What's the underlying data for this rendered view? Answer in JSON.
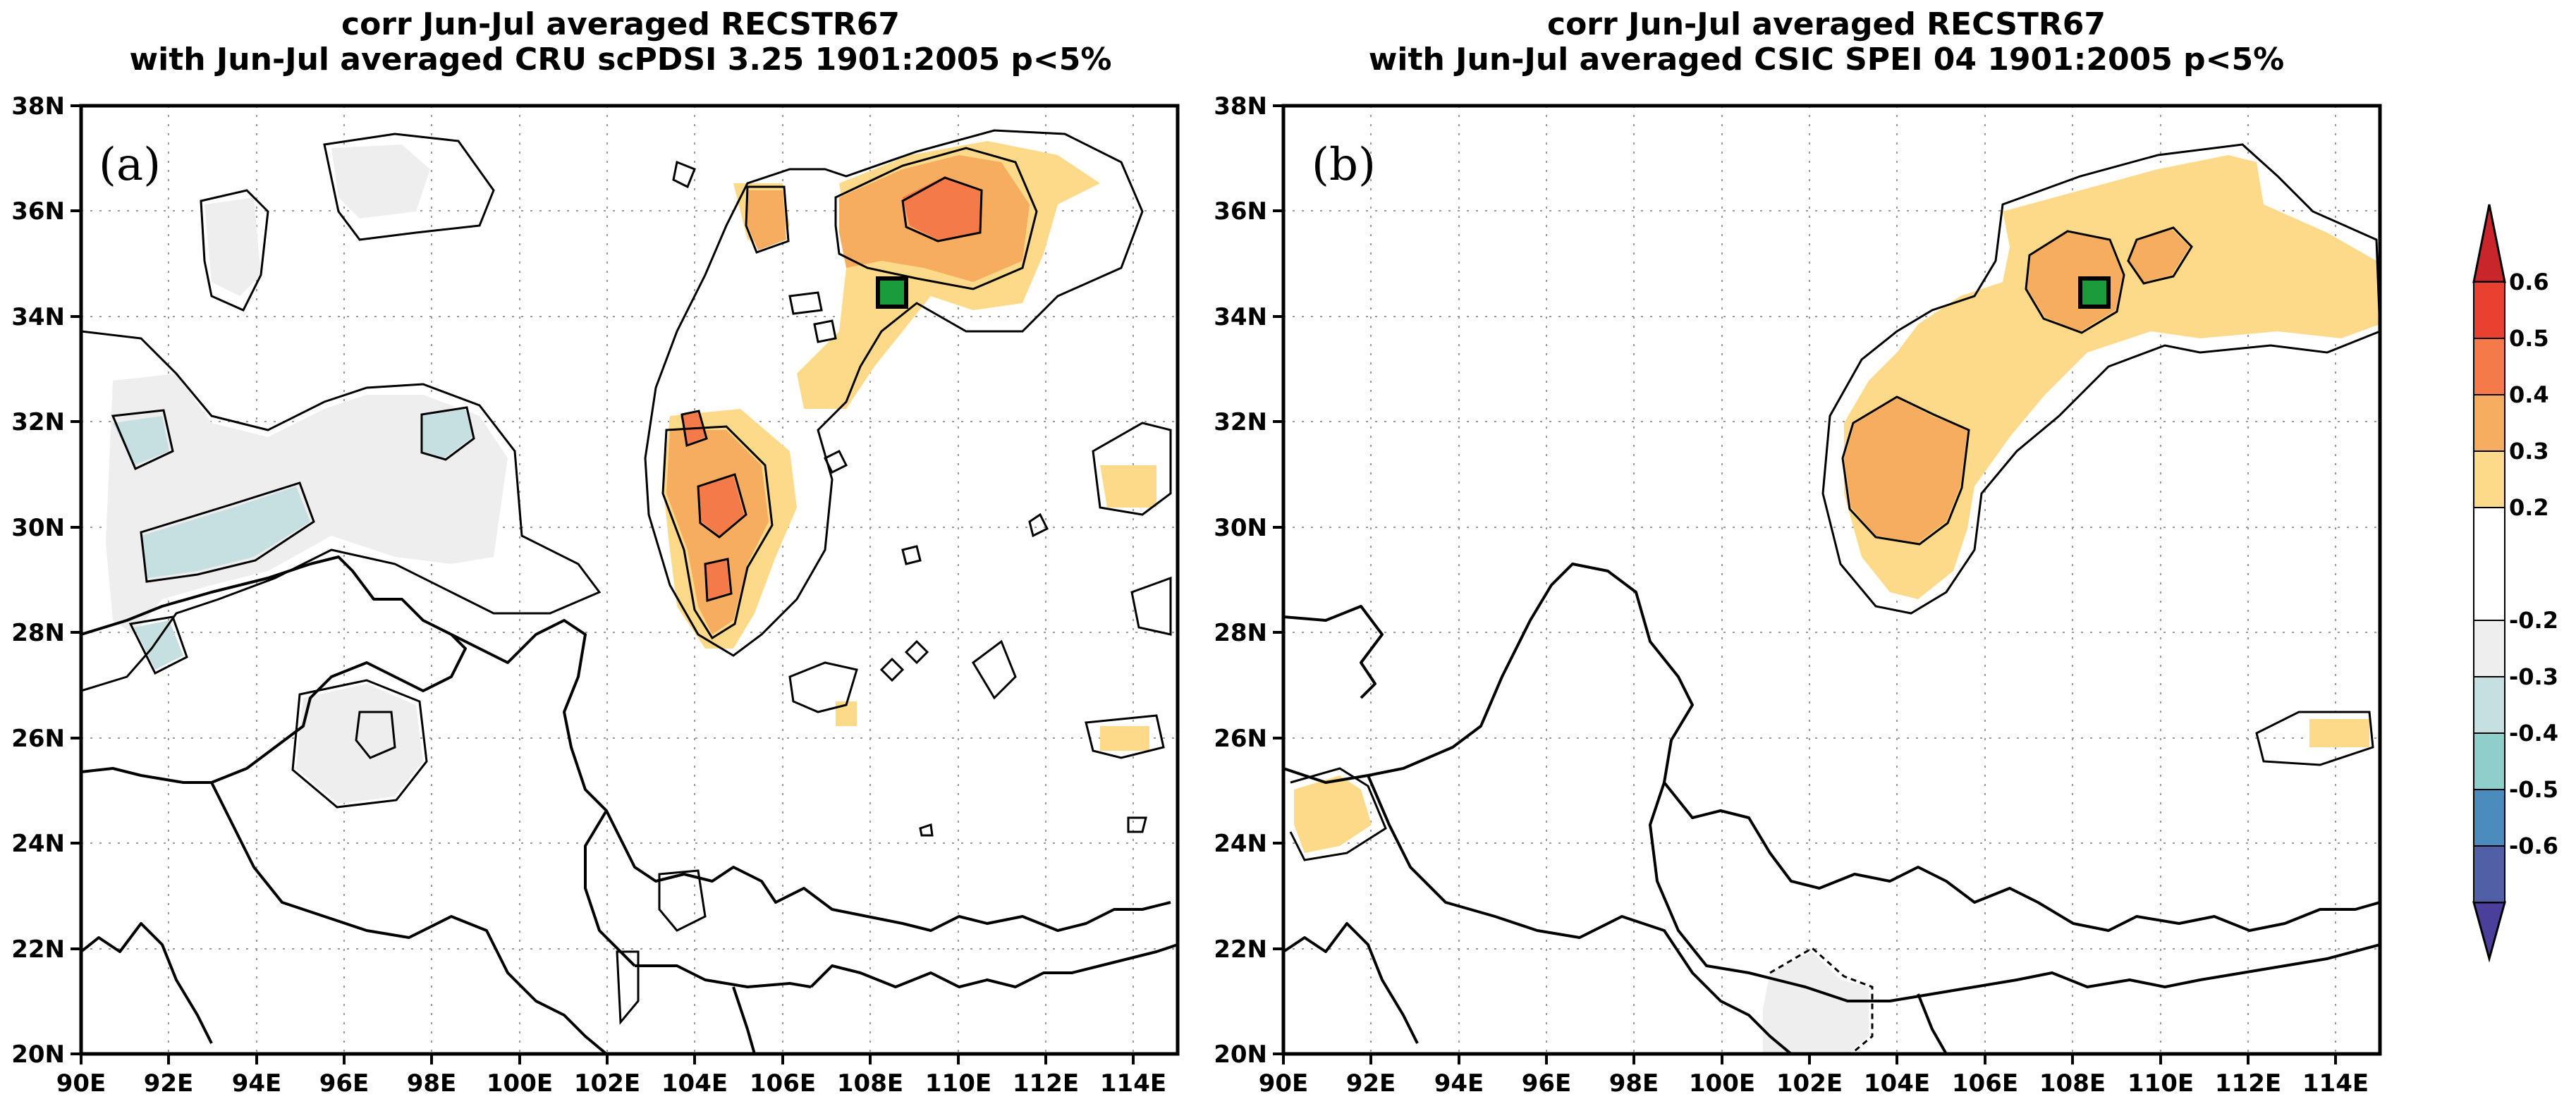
{
  "panels": [
    {
      "id": "a",
      "label": "(a)",
      "title_line1": "corr Jun-Jul averaged RECSTR67",
      "title_line2": "with Jun-Jul averaged CRU scPDSI 3.25 1901:2005 p<5%"
    },
    {
      "id": "b",
      "label": "(b)",
      "title_line1": "corr Jun-Jul averaged RECSTR67",
      "title_line2": "with Jun-Jul averaged CSIC SPEI 04 1901:2005 p<5%"
    }
  ],
  "axes": {
    "lon_ticks": [
      "90E",
      "92E",
      "94E",
      "96E",
      "98E",
      "100E",
      "102E",
      "104E",
      "106E",
      "108E",
      "110E",
      "112E",
      "114E"
    ],
    "lat_ticks": [
      "38N",
      "36N",
      "34N",
      "32N",
      "30N",
      "28N",
      "26N",
      "24N",
      "22N",
      "20N"
    ],
    "lon_range": [
      90,
      115
    ],
    "lat_range": [
      20,
      38
    ]
  },
  "site_marker": {
    "lon": 108.5,
    "lat": 34.4,
    "color": "#1a9c3c"
  },
  "colorbar": {
    "labels": [
      "0.6",
      "0.5",
      "0.4",
      "0.3",
      "0.2",
      "-0.2",
      "-0.3",
      "-0.4",
      "-0.5",
      "-0.6"
    ],
    "colors": {
      "gt_0.6": "#c8262b",
      "0.5_0.6": "#e9412f",
      "0.4_0.5": "#f47a4a",
      "0.3_0.4": "#f6ad5f",
      "0.2_0.3": "#fcda8a",
      "-0.2_0.2": "#ffffff",
      "-0.3_-0.2": "#eeeeee",
      "-0.4_-0.3": "#c6dfe0",
      "-0.5_-0.4": "#8fcfcb",
      "-0.6_-0.5": "#4a8cbd",
      "lt_-0.6": "#4a3f9a"
    }
  }
}
